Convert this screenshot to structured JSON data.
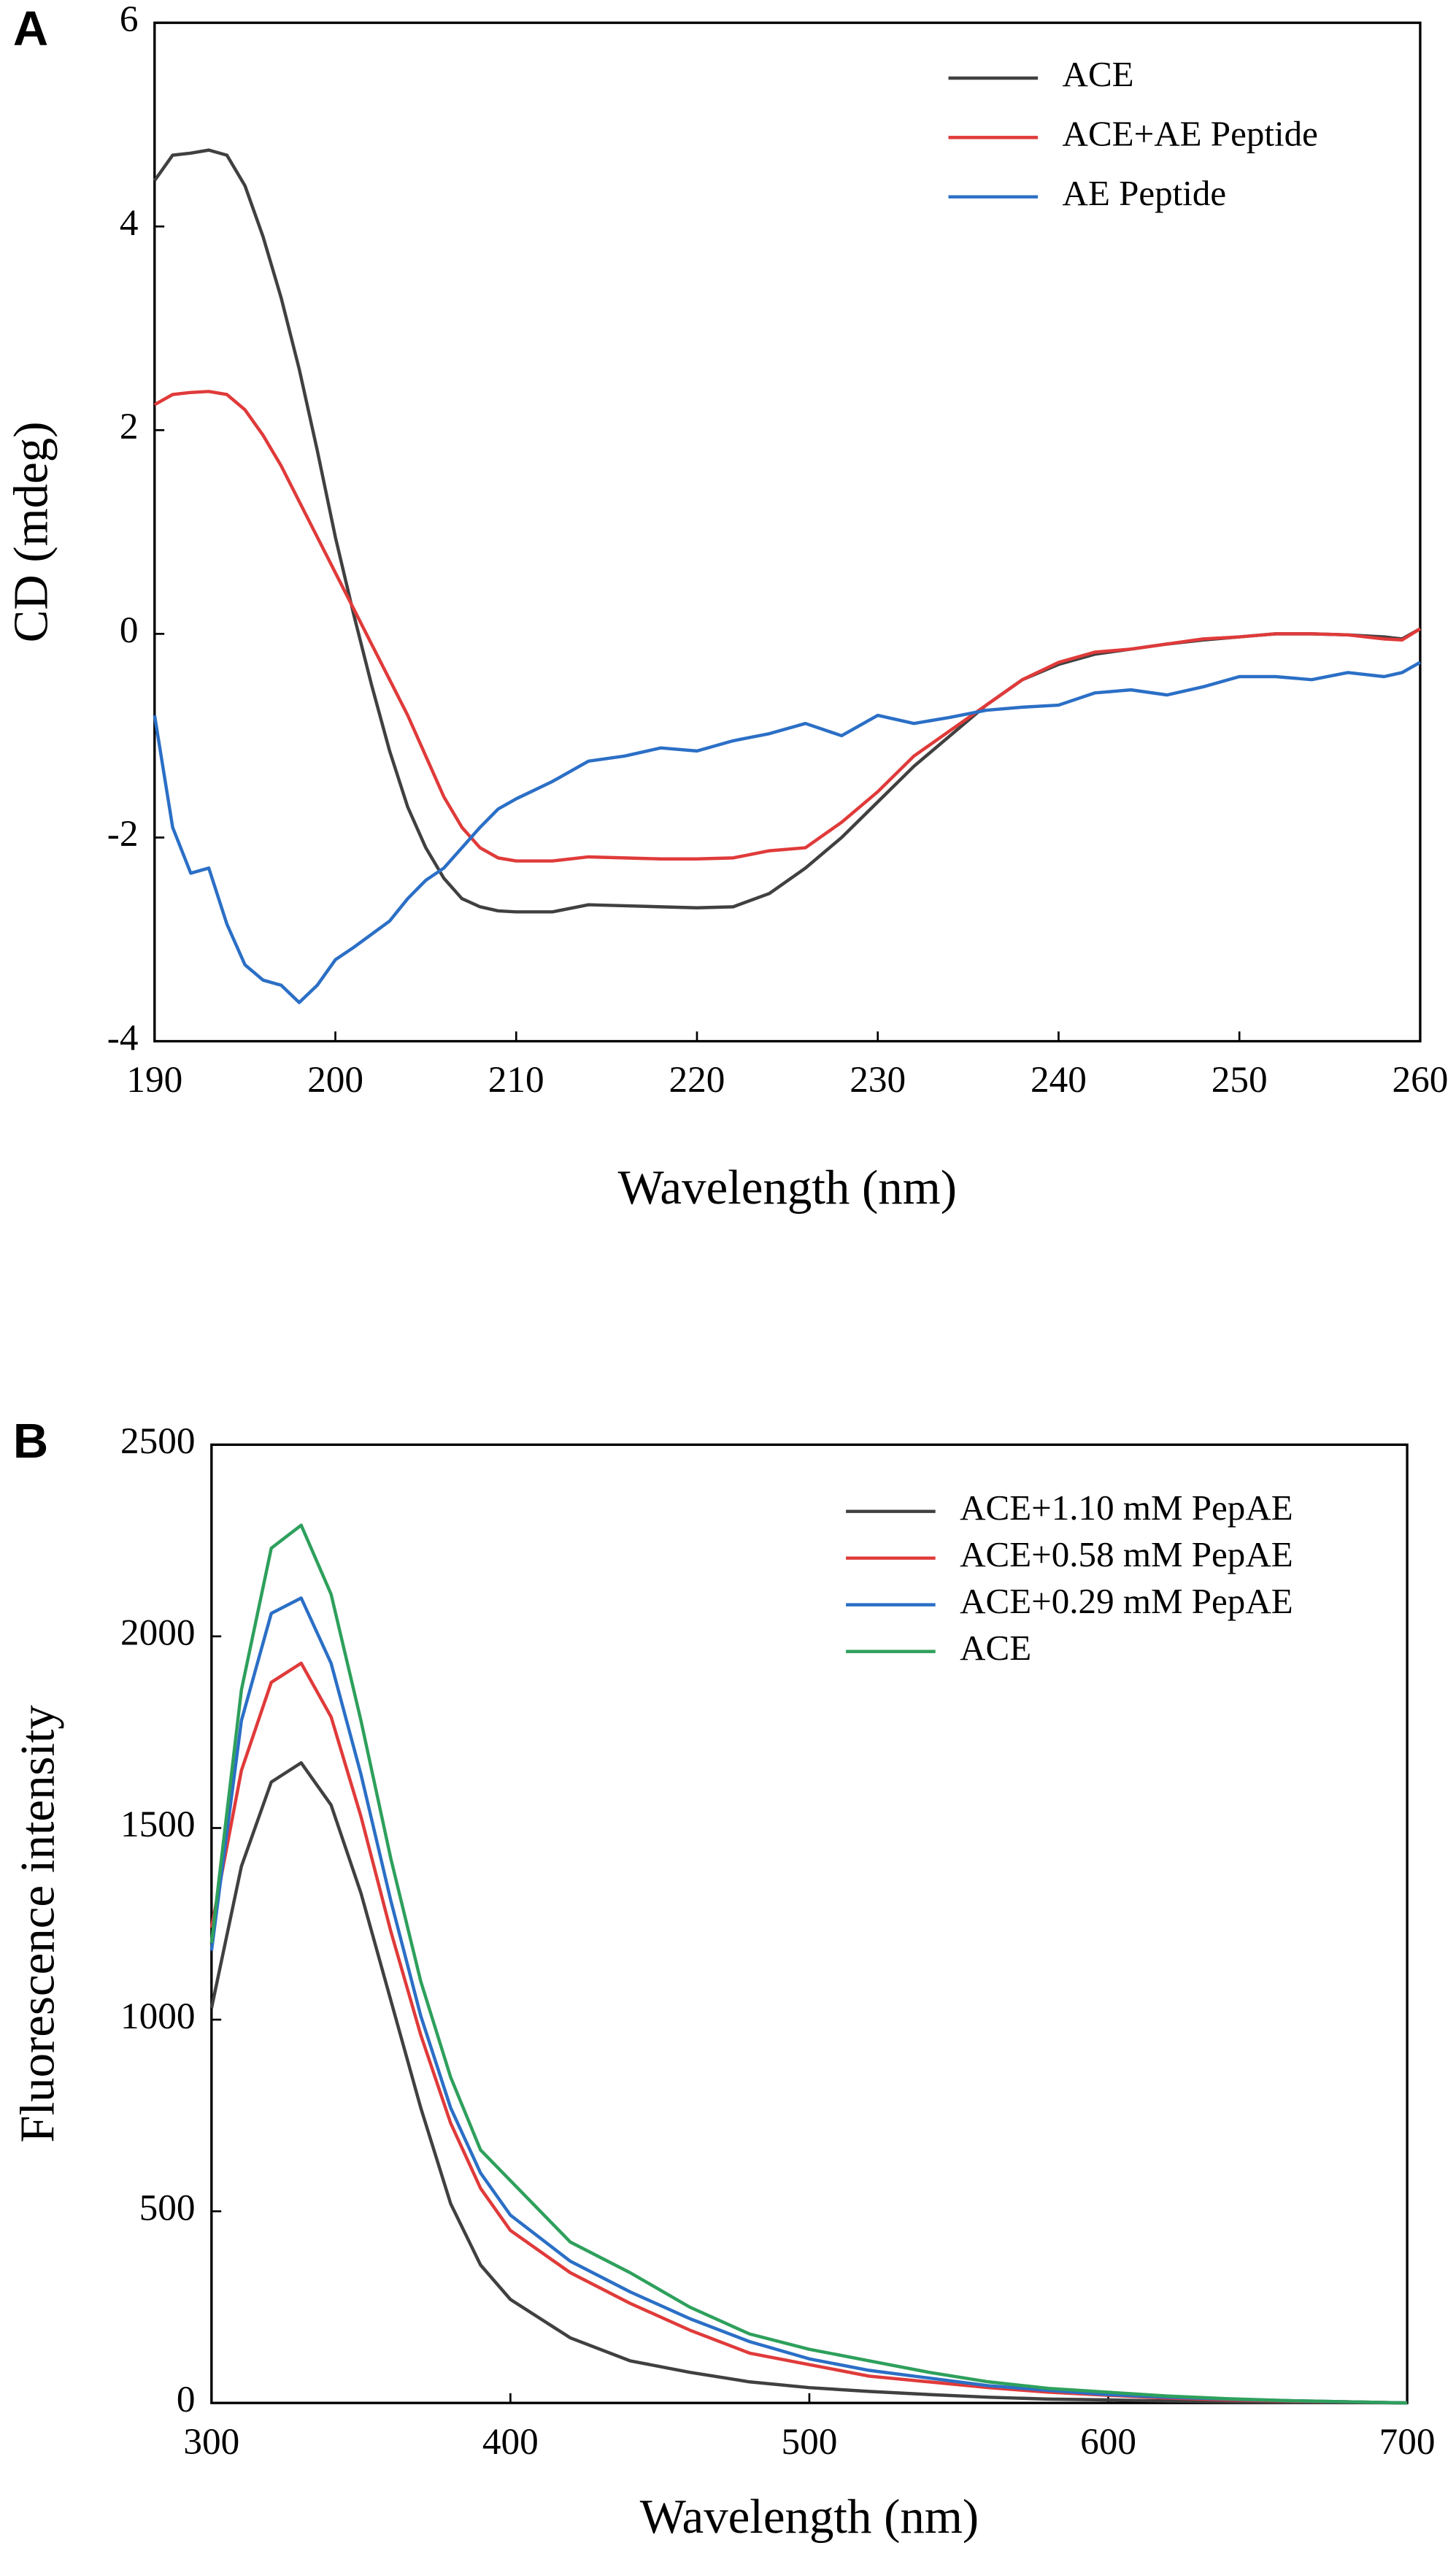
{
  "chart_data": [
    {
      "type": "line",
      "panel": "A",
      "xlabel": "Wavelength (nm)",
      "ylabel": "CD (mdeg)",
      "x": [
        190,
        191,
        192,
        193,
        194,
        195,
        196,
        197,
        198,
        199,
        200,
        201,
        202,
        203,
        204,
        205,
        206,
        207,
        208,
        209,
        210,
        212,
        214,
        216,
        218,
        220,
        222,
        224,
        226,
        228,
        230,
        232,
        234,
        236,
        238,
        240,
        242,
        244,
        246,
        248,
        250,
        252,
        254,
        256,
        258,
        259,
        260
      ],
      "series": [
        {
          "name": "ACE",
          "color": "#404040",
          "values": [
            4.45,
            4.7,
            4.72,
            4.75,
            4.7,
            4.4,
            3.9,
            3.3,
            2.6,
            1.8,
            0.95,
            0.2,
            -0.5,
            -1.15,
            -1.7,
            -2.1,
            -2.4,
            -2.6,
            -2.68,
            -2.72,
            -2.73,
            -2.73,
            -2.66,
            -2.67,
            -2.68,
            -2.69,
            -2.68,
            -2.55,
            -2.3,
            -2.0,
            -1.65,
            -1.3,
            -1.0,
            -0.7,
            -0.45,
            -0.3,
            -0.2,
            -0.15,
            -0.1,
            -0.06,
            -0.03,
            0,
            0,
            -0.01,
            -0.03,
            -0.05,
            0.05
          ]
        },
        {
          "name": "ACE+AE Peptide",
          "color": "#e03a3a",
          "values": [
            2.25,
            2.35,
            2.37,
            2.38,
            2.35,
            2.2,
            1.95,
            1.65,
            1.3,
            0.95,
            0.6,
            0.25,
            -0.1,
            -0.45,
            -0.8,
            -1.2,
            -1.6,
            -1.9,
            -2.1,
            -2.2,
            -2.23,
            -2.23,
            -2.19,
            -2.2,
            -2.21,
            -2.21,
            -2.2,
            -2.13,
            -2.1,
            -1.85,
            -1.55,
            -1.2,
            -0.95,
            -0.7,
            -0.45,
            -0.28,
            -0.18,
            -0.15,
            -0.1,
            -0.05,
            -0.03,
            0,
            0,
            -0.01,
            -0.05,
            -0.06,
            0.05
          ]
        },
        {
          "name": "AE Peptide",
          "color": "#2b6fc6",
          "values": [
            -0.8,
            -1.9,
            -2.35,
            -2.3,
            -2.85,
            -3.25,
            -3.4,
            -3.45,
            -3.62,
            -3.45,
            -3.2,
            -3.08,
            -2.95,
            -2.82,
            -2.6,
            -2.42,
            -2.3,
            -2.1,
            -1.9,
            -1.72,
            -1.62,
            -1.45,
            -1.25,
            -1.2,
            -1.12,
            -1.15,
            -1.05,
            -0.98,
            -0.88,
            -1.0,
            -0.8,
            -0.88,
            -0.82,
            -0.75,
            -0.72,
            -0.7,
            -0.58,
            -0.55,
            -0.6,
            -0.52,
            -0.42,
            -0.42,
            -0.45,
            -0.38,
            -0.42,
            -0.38,
            -0.28
          ]
        }
      ],
      "xlim": [
        190,
        260
      ],
      "ylim": [
        -4,
        6
      ],
      "xticks": [
        190,
        200,
        210,
        220,
        230,
        240,
        250,
        260
      ],
      "yticks": [
        -4,
        -2,
        0,
        2,
        4,
        6
      ],
      "legend": "upper right"
    },
    {
      "type": "line",
      "panel": "B",
      "xlabel": "Wavelength (nm)",
      "ylabel": "Fluorescence intensity",
      "x": [
        300,
        310,
        320,
        330,
        340,
        350,
        360,
        370,
        380,
        390,
        400,
        420,
        440,
        460,
        480,
        500,
        520,
        540,
        560,
        580,
        600,
        620,
        640,
        660,
        680,
        700
      ],
      "series": [
        {
          "name": "ACE+1.10 mM  PepAE",
          "color": "#404040",
          "values": [
            1030,
            1400,
            1620,
            1670,
            1560,
            1330,
            1050,
            770,
            520,
            360,
            270,
            170,
            110,
            80,
            55,
            40,
            30,
            22,
            15,
            10,
            8,
            5,
            3,
            2,
            1,
            0
          ]
        },
        {
          "name": "ACE+0.58 mM PepAE",
          "color": "#e03a3a",
          "values": [
            1240,
            1650,
            1880,
            1930,
            1790,
            1530,
            1230,
            960,
            730,
            560,
            450,
            340,
            260,
            190,
            130,
            100,
            70,
            55,
            40,
            28,
            20,
            13,
            8,
            5,
            3,
            0
          ]
        },
        {
          "name": "ACE+0.29 mM PepAE",
          "color": "#2b6fc6",
          "values": [
            1180,
            1780,
            2060,
            2100,
            1930,
            1640,
            1310,
            1010,
            770,
            600,
            490,
            370,
            290,
            220,
            160,
            115,
            85,
            65,
            45,
            33,
            22,
            15,
            10,
            6,
            3,
            0
          ]
        },
        {
          "name": "ACE",
          "color": "#2ea05c",
          "values": [
            1200,
            1860,
            2230,
            2290,
            2110,
            1780,
            1420,
            1100,
            850,
            660,
            580,
            420,
            340,
            250,
            180,
            140,
            110,
            80,
            55,
            38,
            28,
            18,
            11,
            6,
            3,
            0
          ]
        }
      ],
      "xlim": [
        300,
        700
      ],
      "ylim": [
        0,
        2500
      ],
      "xticks": [
        300,
        400,
        500,
        600,
        700
      ],
      "yticks": [
        0,
        500,
        1000,
        1500,
        2000,
        2500
      ],
      "legend": "upper right"
    }
  ]
}
